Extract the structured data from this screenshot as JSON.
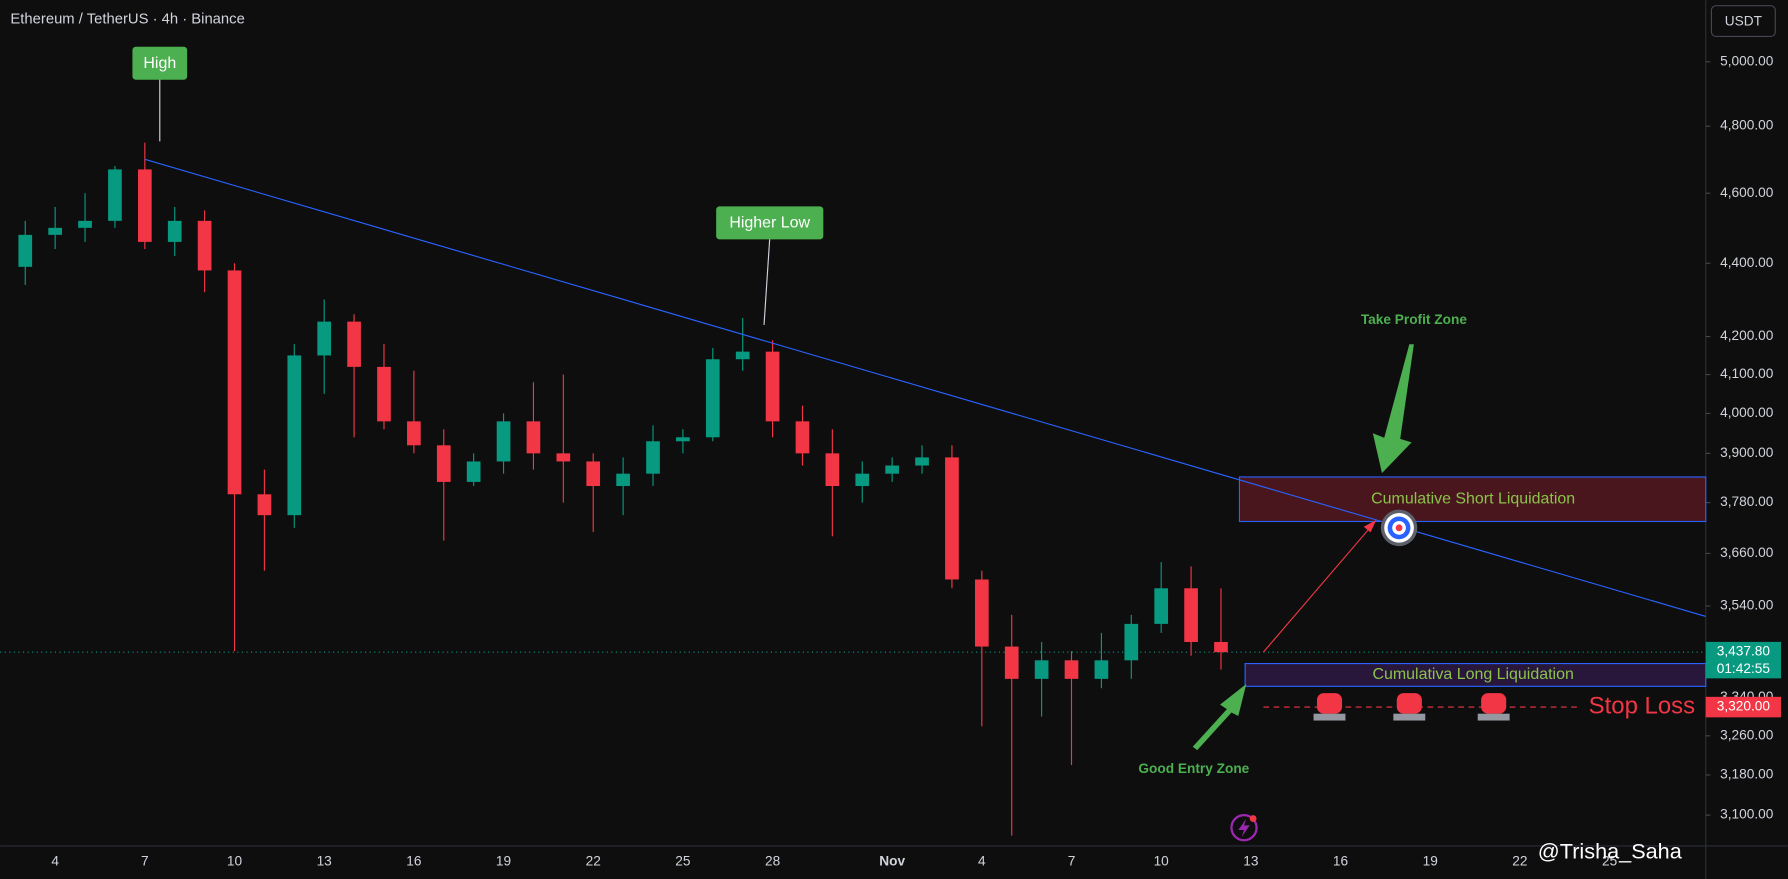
{
  "chart_data": {
    "type": "candlestick",
    "title": "Ethereum / TetherUS · 4h · Binance",
    "currency_button": "USDT",
    "log_scale": true,
    "ylim": [
      3040,
      5200
    ],
    "yticks": [
      {
        "value": 5000,
        "label": "5,000.00"
      },
      {
        "value": 4800,
        "label": "4,800.00"
      },
      {
        "value": 4600,
        "label": "4,600.00"
      },
      {
        "value": 4400,
        "label": "4,400.00"
      },
      {
        "value": 4200,
        "label": "4,200.00"
      },
      {
        "value": 4100,
        "label": "4,100.00"
      },
      {
        "value": 4000,
        "label": "4,000.00"
      },
      {
        "value": 3900,
        "label": "3,900.00"
      },
      {
        "value": 3780,
        "label": "3,780.00"
      },
      {
        "value": 3660,
        "label": "3,660.00"
      },
      {
        "value": 3540,
        "label": "3,540.00"
      },
      {
        "value": 3340,
        "label": "3,340.00"
      },
      {
        "value": 3260,
        "label": "3,260.00"
      },
      {
        "value": 3180,
        "label": "3,180.00"
      },
      {
        "value": 3100,
        "label": "3,100.00"
      }
    ],
    "categories": [
      null,
      "4",
      null,
      null,
      "7",
      null,
      null,
      "10",
      null,
      null,
      "13",
      null,
      null,
      "16",
      null,
      null,
      "19",
      null,
      null,
      "22",
      null,
      null,
      "25",
      null,
      null,
      "28",
      null,
      null,
      null,
      "Nov",
      null,
      null,
      "4",
      null,
      null,
      "7",
      null,
      null,
      "10",
      null,
      null,
      "13",
      null,
      null,
      "16",
      null,
      null,
      "19",
      null,
      null,
      "22",
      null,
      null,
      "25"
    ],
    "open": [
      4390,
      4480,
      4500,
      4520,
      4670,
      4460,
      4520,
      4380,
      3800,
      3750,
      4150,
      4240,
      4120,
      3980,
      3920,
      3830,
      3880,
      3980,
      3900,
      3880,
      3820,
      3850,
      3930,
      3940,
      4140,
      4160,
      3980,
      3900,
      3820,
      3850,
      3870,
      3890,
      3600,
      3450,
      3380,
      3420,
      3380,
      3420,
      3500,
      3580,
      3460,
      null,
      null,
      null,
      null,
      null,
      null,
      null,
      null,
      null,
      null,
      null,
      null,
      null
    ],
    "high": [
      4520,
      4560,
      4600,
      4680,
      4750,
      4560,
      4550,
      4400,
      3860,
      4180,
      4300,
      4260,
      4180,
      4110,
      3960,
      3900,
      4000,
      4080,
      4100,
      3900,
      3890,
      3970,
      3960,
      4170,
      4250,
      4190,
      4020,
      3960,
      3880,
      3890,
      3920,
      3920,
      3620,
      3520,
      3460,
      3440,
      3480,
      3520,
      3640,
      3630,
      3580,
      null,
      null,
      null,
      null,
      null,
      null,
      null,
      null,
      null,
      null,
      null,
      null,
      null
    ],
    "low": [
      4340,
      4440,
      4460,
      4500,
      4440,
      4420,
      4320,
      3440,
      3620,
      3720,
      4050,
      3940,
      3960,
      3900,
      3690,
      3820,
      3850,
      3860,
      3780,
      3710,
      3750,
      3820,
      3900,
      3930,
      4110,
      3940,
      3870,
      3700,
      3780,
      3830,
      3850,
      3580,
      3280,
      3060,
      3300,
      3200,
      3360,
      3380,
      3480,
      3430,
      3400,
      null,
      null,
      null,
      null,
      null,
      null,
      null,
      null,
      null,
      null,
      null,
      null,
      null
    ],
    "close": [
      4480,
      4500,
      4520,
      4670,
      4460,
      4520,
      4380,
      3800,
      3750,
      4150,
      4240,
      4120,
      3980,
      3920,
      3830,
      3880,
      3980,
      3900,
      3880,
      3820,
      3850,
      3930,
      3940,
      4140,
      4160,
      3980,
      3900,
      3820,
      3850,
      3870,
      3890,
      3600,
      3450,
      3380,
      3420,
      3380,
      3420,
      3500,
      3580,
      3460,
      3437.8,
      null,
      null,
      null,
      null,
      null,
      null,
      null,
      null,
      null,
      null,
      null,
      null,
      null
    ],
    "up_color": "#089981",
    "down_color": "#f23645",
    "last_price": 3437.8,
    "last_price_label": "3,437.80",
    "countdown": "01:42:55",
    "trendline": {
      "start": [
        4,
        4700
      ],
      "end": [
        53,
        3580
      ],
      "color": "#2962ff"
    },
    "short_zone": {
      "label": "Cumulative Short Liquidation",
      "top": 3842,
      "bottom": 3735
    },
    "long_zone": {
      "label": "Cumulativa Long Liquidation",
      "top": 3413,
      "bottom": 3364
    },
    "stop_loss": {
      "label": "Stop Loss",
      "value": 3320,
      "value_label": "3,320.00"
    },
    "annotations": {
      "high": "High",
      "higher_low": "Higher Low",
      "take_profit": "Take Profit Zone",
      "entry": "Good Entry Zone"
    },
    "watermark": "@Trisha_Saha"
  }
}
